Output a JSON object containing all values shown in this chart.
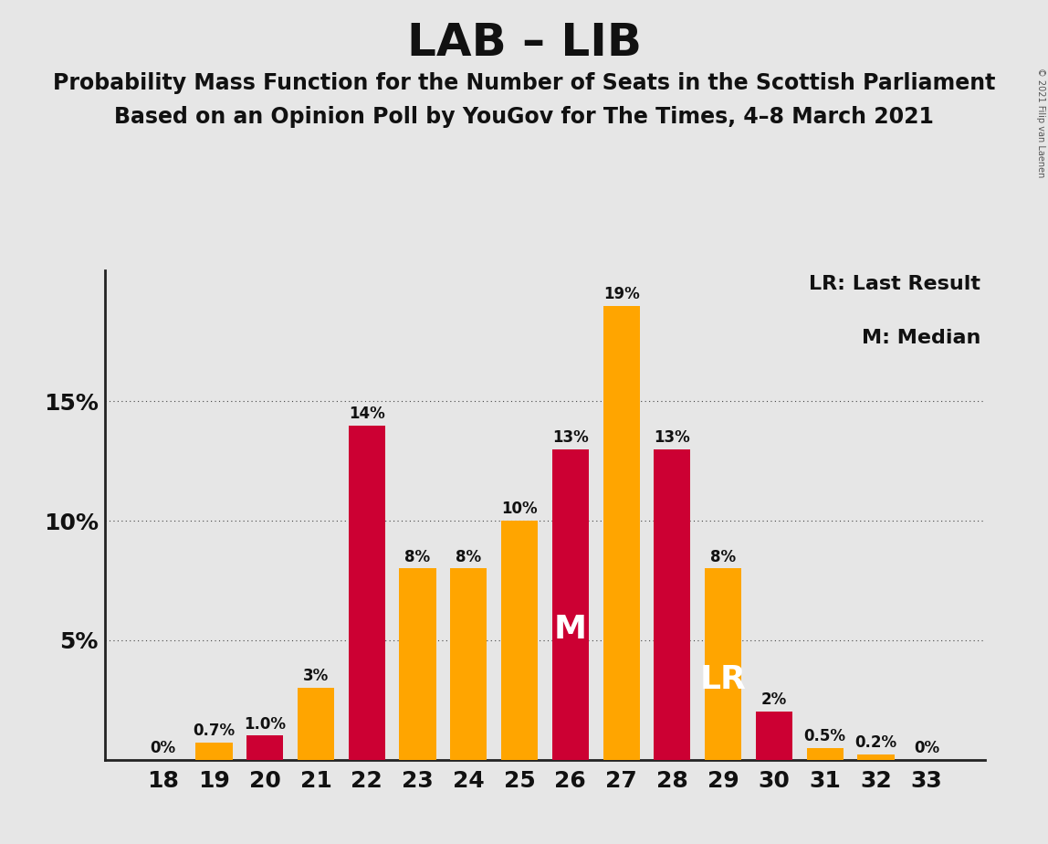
{
  "title": "LAB – LIB",
  "subtitle1": "Probability Mass Function for the Number of Seats in the Scottish Parliament",
  "subtitle2": "Based on an Opinion Poll by YouGov for The Times, 4–8 March 2021",
  "copyright": "© 2021 Filip van Laenen",
  "seats": [
    18,
    19,
    20,
    21,
    22,
    23,
    24,
    25,
    26,
    27,
    28,
    29,
    30,
    31,
    32,
    33
  ],
  "values": [
    0.0,
    0.7,
    1.0,
    3.0,
    14.0,
    8.0,
    8.0,
    10.0,
    13.0,
    19.0,
    13.0,
    8.0,
    2.0,
    0.5,
    0.2,
    0.0
  ],
  "colors": [
    "#FFA500",
    "#FFA500",
    "#CC0033",
    "#FFA500",
    "#CC0033",
    "#FFA500",
    "#FFA500",
    "#FFA500",
    "#CC0033",
    "#FFA500",
    "#CC0033",
    "#FFA500",
    "#CC0033",
    "#FFA500",
    "#FFA500",
    "#CC0033"
  ],
  "labels": [
    "0%",
    "0.7%",
    "1.0%",
    "3%",
    "14%",
    "8%",
    "8%",
    "10%",
    "13%",
    "19%",
    "13%",
    "8%",
    "2%",
    "0.5%",
    "0.2%",
    "0%"
  ],
  "median_seat": 26,
  "lr_seat": 29,
  "ylim_max": 20.5,
  "yticks": [
    5,
    10,
    15
  ],
  "ytick_labels": [
    "5%",
    "10%",
    "15%"
  ],
  "background_color": "#e6e6e6",
  "grid_color": "#444444",
  "orange_color": "#FFA500",
  "red_color": "#CC0033",
  "legend_lr": "LR: Last Result",
  "legend_m": "M: Median",
  "title_fontsize": 36,
  "subtitle_fontsize": 17,
  "tick_fontsize": 18,
  "label_fontsize": 12,
  "bar_width": 0.72
}
